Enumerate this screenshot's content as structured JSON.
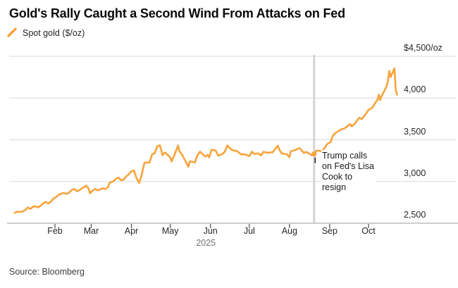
{
  "footer": {
    "source": "Source: Bloomberg"
  },
  "colors": {
    "line": "#F8A33B",
    "grid": "#d9d9d9",
    "axis": "#b0b0b0",
    "tick": "#4a4a4a",
    "event_line": "#d4d4d4",
    "pointer": "#111111"
  },
  "chart_data": {
    "type": "line",
    "title": "Gold's Rally Caught a Second Wind From Attacks on Fed",
    "subtitle": "",
    "legend_position": "top-left",
    "grid": "horizontal",
    "x_axis": {
      "unit": "days since 2025-01-01",
      "range": [
        0,
        295
      ],
      "year_label": "2025",
      "ticks": [
        {
          "day": 31,
          "label": "Feb"
        },
        {
          "day": 59,
          "label": "Mar"
        },
        {
          "day": 90,
          "label": "Apr"
        },
        {
          "day": 120,
          "label": "May"
        },
        {
          "day": 151,
          "label": "Jun"
        },
        {
          "day": 181,
          "label": "Jul"
        },
        {
          "day": 212,
          "label": "Aug"
        },
        {
          "day": 243,
          "label": "Sep"
        },
        {
          "day": 273,
          "label": "Oct"
        }
      ]
    },
    "y_axis": {
      "range": [
        2500,
        4500
      ],
      "side": "right",
      "ticks": [
        {
          "value": 4500,
          "label": "$4,500/oz"
        },
        {
          "value": 4000,
          "label": "4,000"
        },
        {
          "value": 3500,
          "label": "3,500"
        },
        {
          "value": 3000,
          "label": "3,000"
        },
        {
          "value": 2500,
          "label": "2,500"
        }
      ]
    },
    "event": {
      "day": 231,
      "value": 3330,
      "label_lines": [
        "Trump calls",
        "on Fed's Lisa",
        "Cook to",
        "resign"
      ]
    },
    "series": [
      {
        "name": "Spot gold ($/oz)",
        "color": "#F8A33B",
        "points": [
          [
            0,
            2625
          ],
          [
            2,
            2640
          ],
          [
            4,
            2634
          ],
          [
            6,
            2642
          ],
          [
            8,
            2656
          ],
          [
            10,
            2690
          ],
          [
            12,
            2672
          ],
          [
            14,
            2697
          ],
          [
            16,
            2703
          ],
          [
            18,
            2690
          ],
          [
            20,
            2712
          ],
          [
            22,
            2740
          ],
          [
            24,
            2756
          ],
          [
            26,
            2736
          ],
          [
            28,
            2762
          ],
          [
            30,
            2798
          ],
          [
            32,
            2812
          ],
          [
            34,
            2843
          ],
          [
            36,
            2856
          ],
          [
            38,
            2862
          ],
          [
            40,
            2852
          ],
          [
            42,
            2868
          ],
          [
            44,
            2899
          ],
          [
            46,
            2910
          ],
          [
            48,
            2882
          ],
          [
            50,
            2897
          ],
          [
            52,
            2921
          ],
          [
            54,
            2936
          ],
          [
            55,
            2951
          ],
          [
            57,
            2916
          ],
          [
            58,
            2858
          ],
          [
            60,
            2891
          ],
          [
            62,
            2911
          ],
          [
            64,
            2892
          ],
          [
            66,
            2906
          ],
          [
            68,
            2918
          ],
          [
            70,
            2910
          ],
          [
            72,
            2934
          ],
          [
            73,
            2984
          ],
          [
            76,
            3001
          ],
          [
            78,
            3032
          ],
          [
            80,
            3048
          ],
          [
            82,
            3015
          ],
          [
            84,
            3023
          ],
          [
            86,
            3060
          ],
          [
            88,
            3086
          ],
          [
            90,
            3123
          ],
          [
            92,
            3130
          ],
          [
            94,
            3038
          ],
          [
            96,
            2983
          ],
          [
            98,
            3082
          ],
          [
            100,
            3222
          ],
          [
            102,
            3230
          ],
          [
            104,
            3227
          ],
          [
            106,
            3327
          ],
          [
            108,
            3339
          ],
          [
            110,
            3424
          ],
          [
            112,
            3433
          ],
          [
            113,
            3381
          ],
          [
            114,
            3316
          ],
          [
            116,
            3348
          ],
          [
            118,
            3318
          ],
          [
            120,
            3288
          ],
          [
            121,
            3240
          ],
          [
            123,
            3310
          ],
          [
            126,
            3431
          ],
          [
            127,
            3364
          ],
          [
            129,
            3325
          ],
          [
            132,
            3236
          ],
          [
            134,
            3177
          ],
          [
            135,
            3240
          ],
          [
            139,
            3230
          ],
          [
            141,
            3315
          ],
          [
            143,
            3357
          ],
          [
            147,
            3300
          ],
          [
            149,
            3317
          ],
          [
            150,
            3289
          ],
          [
            152,
            3381
          ],
          [
            155,
            3372
          ],
          [
            157,
            3310
          ],
          [
            160,
            3327
          ],
          [
            162,
            3355
          ],
          [
            164,
            3432
          ],
          [
            167,
            3385
          ],
          [
            169,
            3369
          ],
          [
            171,
            3368
          ],
          [
            175,
            3324
          ],
          [
            177,
            3328
          ],
          [
            181,
            3303
          ],
          [
            183,
            3357
          ],
          [
            185,
            3330
          ],
          [
            188,
            3337
          ],
          [
            190,
            3313
          ],
          [
            192,
            3356
          ],
          [
            195,
            3343
          ],
          [
            197,
            3347
          ],
          [
            199,
            3350
          ],
          [
            203,
            3430
          ],
          [
            204,
            3387
          ],
          [
            206,
            3337
          ],
          [
            210,
            3326
          ],
          [
            212,
            3290
          ],
          [
            213,
            3363
          ],
          [
            217,
            3380
          ],
          [
            219,
            3397
          ],
          [
            220,
            3398
          ],
          [
            223,
            3344
          ],
          [
            225,
            3355
          ],
          [
            227,
            3336
          ],
          [
            229,
            3316
          ],
          [
            231,
            3330
          ],
          [
            233,
            3372
          ],
          [
            237,
            3365
          ],
          [
            239,
            3397
          ],
          [
            241,
            3448
          ],
          [
            244,
            3476
          ],
          [
            245,
            3533
          ],
          [
            246,
            3559
          ],
          [
            248,
            3587
          ],
          [
            252,
            3625
          ],
          [
            254,
            3634
          ],
          [
            255,
            3643
          ],
          [
            259,
            3689
          ],
          [
            260,
            3660
          ],
          [
            262,
            3685
          ],
          [
            265,
            3749
          ],
          [
            266,
            3764
          ],
          [
            268,
            3749
          ],
          [
            272,
            3833
          ],
          [
            273,
            3858
          ],
          [
            274,
            3866
          ],
          [
            276,
            3886
          ],
          [
            279,
            3960
          ],
          [
            280,
            3983
          ],
          [
            281,
            4040
          ],
          [
            282,
            3976
          ],
          [
            283,
            4018
          ],
          [
            286,
            4110
          ],
          [
            287,
            4143
          ],
          [
            288,
            4209
          ],
          [
            289,
            4325
          ],
          [
            290,
            4251
          ],
          [
            293,
            4356
          ],
          [
            294,
            4109
          ],
          [
            295,
            4042
          ]
        ]
      }
    ]
  }
}
